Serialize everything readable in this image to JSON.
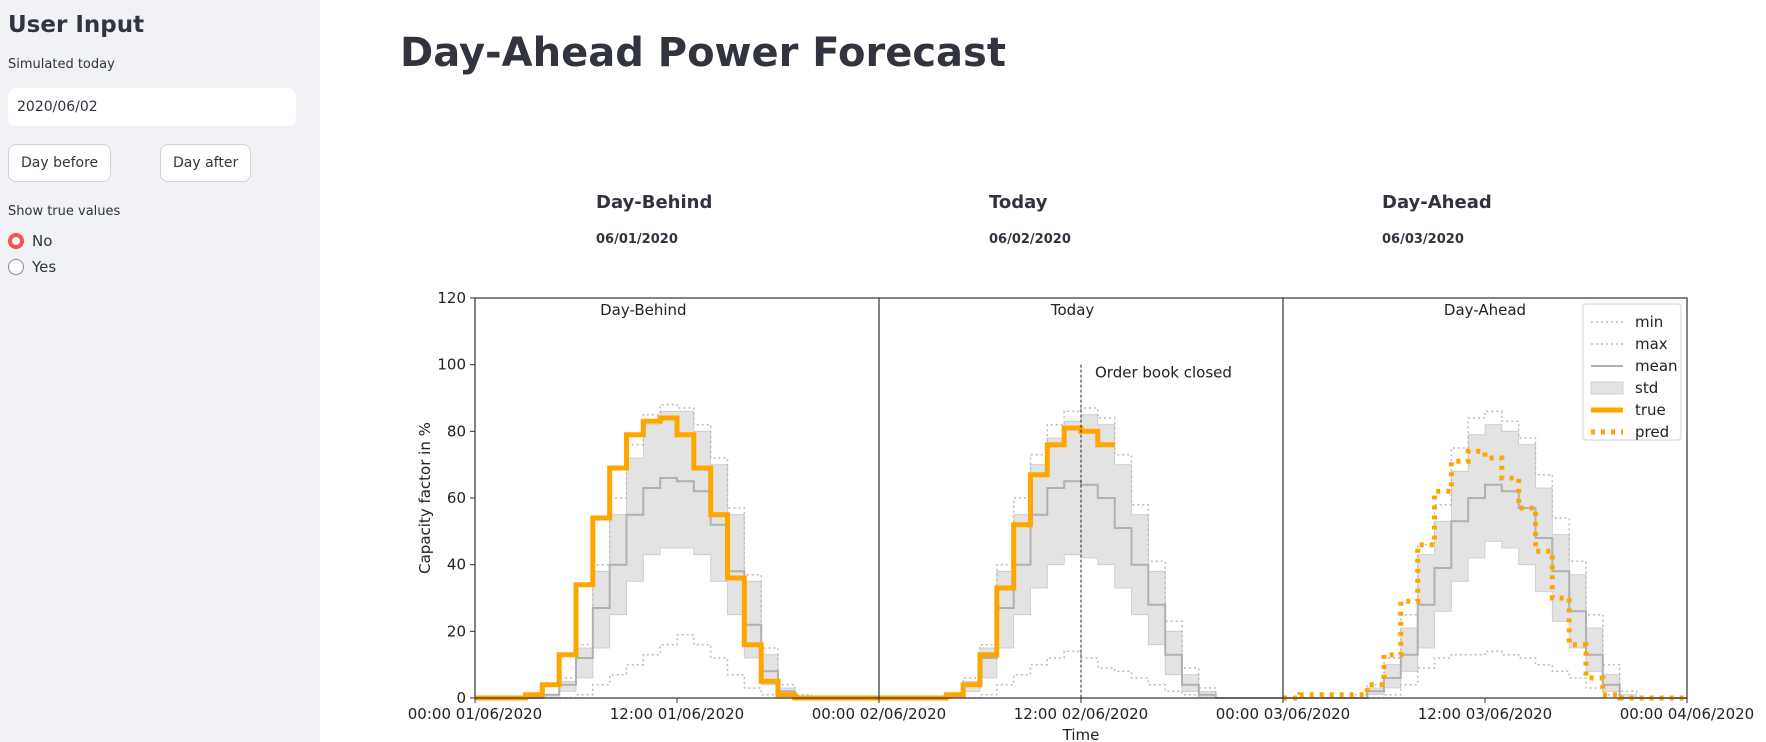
{
  "sidebar": {
    "title": "User Input",
    "date_label": "Simulated today",
    "date_value": "2020/06/02",
    "day_before_label": "Day before",
    "day_after_label": "Day after",
    "show_true_label": "Show true values",
    "options": [
      {
        "label": "No",
        "selected": true
      },
      {
        "label": "Yes",
        "selected": false
      }
    ],
    "accent_color": "#ff4b4b"
  },
  "main": {
    "title": "Day-Ahead Power Forecast",
    "columns": [
      {
        "heading": "Day-Behind",
        "date": "06/01/2020"
      },
      {
        "heading": "Today",
        "date": "06/02/2020"
      },
      {
        "heading": "Day-Ahead",
        "date": "06/03/2020"
      }
    ]
  },
  "chart_data": {
    "type": "line",
    "ylabel": "Capacity factor in %",
    "xlabel": "Time",
    "ylim": [
      0,
      120
    ],
    "yticks": [
      0,
      20,
      40,
      60,
      80,
      100,
      120
    ],
    "x_range_hours": [
      0,
      72
    ],
    "xticks": [
      {
        "hour": 0,
        "label": "00:00 01/06/2020"
      },
      {
        "hour": 12,
        "label": "12:00 01/06/2020"
      },
      {
        "hour": 24,
        "label": "00:00 02/06/2020"
      },
      {
        "hour": 36,
        "label": "12:00 02/06/2020"
      },
      {
        "hour": 48,
        "label": "00:00 03/06/2020"
      },
      {
        "hour": 60,
        "label": "12:00 03/06/2020"
      },
      {
        "hour": 72,
        "label": "00:00 04/06/2020"
      }
    ],
    "panel_labels": [
      {
        "hour": 10,
        "text": "Day-Behind"
      },
      {
        "hour": 35.5,
        "text": "Today"
      },
      {
        "hour": 60,
        "text": "Day-Ahead"
      }
    ],
    "order_book": {
      "hour": 36,
      "label": "Order book closed",
      "y_top": 100
    },
    "legend": [
      "min",
      "max",
      "mean",
      "std",
      "true",
      "pred"
    ],
    "legend_position": "top-right",
    "colors": {
      "true": "#ffa500",
      "pred": "#ffa500",
      "mean": "#b0b0b0",
      "std": "#e3e3e3",
      "minmax": "#bbbbbb"
    },
    "series": {
      "mean": [
        [
          0,
          0,
          0,
          0,
          1,
          4,
          12,
          27,
          40,
          55,
          63,
          66,
          65,
          62,
          52,
          38,
          22,
          8,
          2,
          0,
          0,
          0,
          0,
          0
        ],
        [
          0,
          0,
          0,
          0,
          1,
          4,
          12,
          27,
          40,
          55,
          63,
          65,
          64,
          60,
          51,
          40,
          28,
          13,
          4,
          1,
          0,
          0,
          0,
          0
        ],
        [
          0,
          0,
          0,
          0,
          0,
          2,
          6,
          13,
          28,
          39,
          53,
          60,
          64,
          62,
          57,
          48,
          38,
          26,
          13,
          4,
          0,
          0,
          0,
          0
        ]
      ],
      "std_low": [
        [
          0,
          0,
          0,
          0,
          0,
          2,
          6,
          15,
          25,
          35,
          43,
          45,
          45,
          43,
          35,
          25,
          12,
          4,
          1,
          0,
          0,
          0,
          0,
          0
        ],
        [
          0,
          0,
          0,
          0,
          0,
          2,
          6,
          15,
          25,
          33,
          40,
          43,
          42,
          40,
          33,
          25,
          16,
          7,
          2,
          0,
          0,
          0,
          0,
          0
        ],
        [
          0,
          0,
          0,
          0,
          0,
          1,
          3,
          8,
          15,
          26,
          35,
          42,
          47,
          45,
          40,
          32,
          23,
          15,
          8,
          2,
          0,
          0,
          0,
          0
        ]
      ],
      "std_high": [
        [
          0,
          0,
          0,
          0,
          1,
          5,
          15,
          38,
          55,
          72,
          82,
          86,
          86,
          80,
          70,
          55,
          35,
          13,
          3,
          0,
          0,
          0,
          0,
          0
        ],
        [
          0,
          0,
          0,
          0,
          1,
          5,
          15,
          38,
          55,
          70,
          78,
          83,
          85,
          82,
          70,
          55,
          38,
          20,
          7,
          2,
          0,
          0,
          0,
          0
        ],
        [
          0,
          0,
          0,
          0,
          0,
          3,
          10,
          21,
          43,
          53,
          68,
          79,
          82,
          80,
          76,
          63,
          49,
          37,
          21,
          7,
          1,
          0,
          0,
          0
        ]
      ],
      "min": [
        [
          0,
          0,
          0,
          0,
          0,
          0,
          1,
          4,
          7,
          10,
          13,
          16,
          19,
          16,
          12,
          7,
          3,
          1,
          0,
          0,
          0,
          0,
          0,
          0
        ],
        [
          0,
          0,
          0,
          0,
          0,
          0,
          1,
          4,
          7,
          10,
          12,
          14,
          12,
          9,
          8,
          6,
          4,
          2,
          1,
          0,
          0,
          0,
          0,
          0
        ],
        [
          0,
          0,
          0,
          0,
          0,
          0,
          1,
          4,
          9,
          12,
          13,
          13,
          14,
          13,
          12,
          10,
          8,
          6,
          3,
          1,
          0,
          0,
          0,
          0
        ]
      ],
      "max": [
        [
          0,
          0,
          0,
          0,
          1,
          6,
          16,
          40,
          60,
          76,
          85,
          88,
          87,
          82,
          72,
          57,
          37,
          15,
          4,
          1,
          0,
          0,
          0,
          0
        ],
        [
          0,
          0,
          0,
          0,
          1,
          6,
          16,
          40,
          60,
          73,
          82,
          86,
          87,
          84,
          73,
          58,
          41,
          23,
          9,
          3,
          0,
          0,
          0,
          0
        ],
        [
          0,
          0,
          0,
          0,
          1,
          4,
          12,
          25,
          46,
          58,
          75,
          84,
          86,
          83,
          78,
          67,
          54,
          41,
          25,
          10,
          2,
          0,
          0,
          0
        ]
      ],
      "true": [
        [
          0,
          0,
          0,
          1,
          4,
          13,
          34,
          54,
          69,
          79,
          83,
          84,
          79,
          69,
          55,
          36,
          16,
          5,
          1,
          0,
          0,
          0,
          0,
          0
        ],
        [
          0,
          0,
          0,
          0,
          1,
          4,
          13,
          33,
          52,
          67,
          76,
          81,
          80,
          76
        ]
      ],
      "pred": [
        [
          0,
          1,
          1,
          1,
          1,
          4,
          13,
          29,
          46,
          62,
          71,
          74,
          72,
          66,
          57,
          44,
          30,
          16,
          6,
          1,
          0,
          0,
          0,
          0
        ]
      ]
    }
  }
}
